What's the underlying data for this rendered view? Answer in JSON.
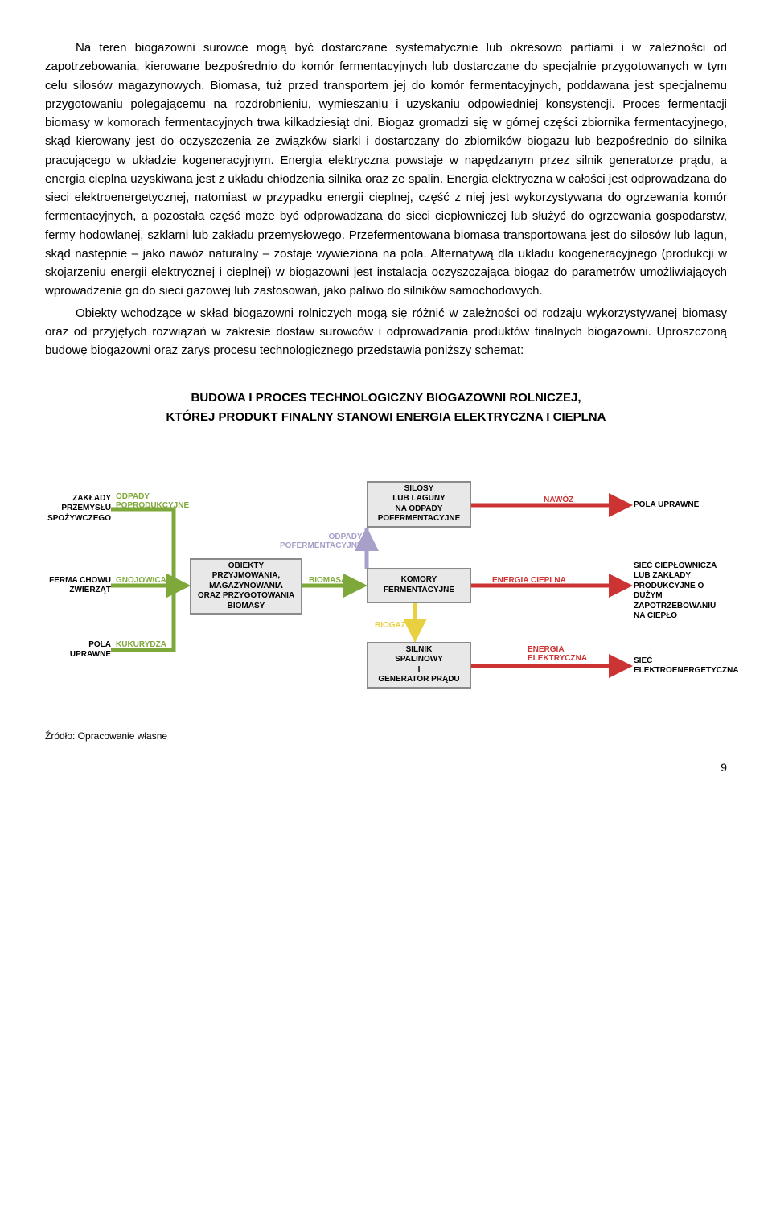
{
  "paragraphs": {
    "p1": "Na teren biogazowni surowce mogą być dostarczane systematycznie lub okresowo partiami i w zależności od zapotrzebowania, kierowane bezpośrednio do komór fermentacyjnych lub dostarczane do specjalnie przygotowanych w tym celu silosów magazynowych. Biomasa, tuż przed transportem jej do komór fermentacyjnych, poddawana jest specjalnemu przygotowaniu polegającemu na rozdrobnieniu, wymieszaniu i uzyskaniu odpowiedniej konsystencji. Proces fermentacji biomasy w komorach fermentacyjnych trwa kilkadziesiąt dni. Biogaz gromadzi się w górnej części zbiornika fermentacyjnego, skąd kierowany jest do oczyszczenia ze związków siarki i dostarczany do zbiorników biogazu lub bezpośrednio do silnika pracującego w układzie kogeneracyjnym. Energia elektryczna powstaje w napędzanym przez silnik generatorze prądu, a energia cieplna uzyskiwana jest z układu chłodzenia silnika oraz ze spalin. Energia elektryczna w całości jest odprowadzana do sieci elektroenergetycznej, natomiast w przypadku energii cieplnej, część z niej jest wykorzystywana do ogrzewania komór fermentacyjnych, a pozostała część może być odprowadzana do sieci ciepłowniczej lub służyć do ogrzewania gospodarstw, fermy hodowlanej, szklarni lub zakładu przemysłowego. Przefermentowana biomasa transportowana jest do silosów lub lagun, skąd następnie – jako nawóz naturalny – zostaje wywieziona na pola. Alternatywą dla układu koogeneracyjnego (produkcji w skojarzeniu energii elektrycznej i cieplnej) w biogazowni jest instalacja oczyszczająca biogaz do parametrów umożliwiających wprowadzenie go do sieci gazowej lub zastosowań, jako paliwo do silników samochodowych.",
    "p2": "Obiekty wchodzące w skład biogazowni rolniczych mogą się różnić w zależności od rodzaju wykorzystywanej biomasy oraz od przyjętych rozwiązań w zakresie dostaw surowców i odprowadzania produktów finalnych biogazowni. Uproszczoną budowę biogazowni oraz zarys procesu technologicznego przedstawia poniższy schemat:"
  },
  "diagram": {
    "title_l1": "BUDOWA I PROCES TECHNOLOGICZNY BIOGAZOWNI ROLNICZEJ,",
    "title_l2": "KTÓREJ PRODUKT FINALNY STANOWI ENERGIA ELEKTRYCZNA I CIEPLNA",
    "colors": {
      "node_fill": "#e8e8e8",
      "node_border": "#8a8a8a",
      "green": "#7fa83a",
      "purple": "#a8a0c8",
      "red": "#cc3333",
      "yellow": "#e8d040",
      "arrow_width": 5
    },
    "end_labels": {
      "l_top": "ZAKŁADY\nPRZEMYSŁU\nSPOŻYWCZEGO",
      "l_mid": "FERMA CHOWU\nZWIERZĄT",
      "l_bot": "POLA\nUPRAWNE",
      "r_top": "POLA UPRAWNE",
      "r_mid": "SIEĆ CIEPŁOWNICZA\nLUB ZAKŁADY\nPRODUKCYJNE O DUŻYM\nZAPOTRZEBOWANIU\nNA CIEPŁO",
      "r_bot": "SIEĆ\nELEKTROENERGETYCZNA"
    },
    "edge_labels": {
      "odpady_pop": "ODPADY\nPOPRODUKCYJNE",
      "gnojowica": "GNOJOWICA",
      "kukurydza": "KUKURYDZA",
      "biomasa": "BIOMASA",
      "odpady_pof": "ODPADY\nPOFERMENTACYJNE",
      "biogaz": "BIOGAZ",
      "nawoz": "NAWÓZ",
      "en_cieplna": "ENERGIA CIEPLNA",
      "en_elektr": "ENERGIA\nELEKTRYCZNA"
    },
    "nodes": {
      "obj": "OBIEKTY\nPRZYJMOWANIA,\nMAGAZYNOWANIA\nORAZ PRZYGOTOWANIA\nBIOMASY",
      "silosy": "SILOSY\nLUB LAGUNY\nNA ODPADY\nPOFERMENTACYJNE",
      "komory": "KOMORY\nFERMENTACYJNE",
      "silnik": "SILNIK\nSPALINOWY\nI\nGENERATOR PRĄDU"
    }
  },
  "footer": "Źródło: Opracowanie własne",
  "page": "9"
}
